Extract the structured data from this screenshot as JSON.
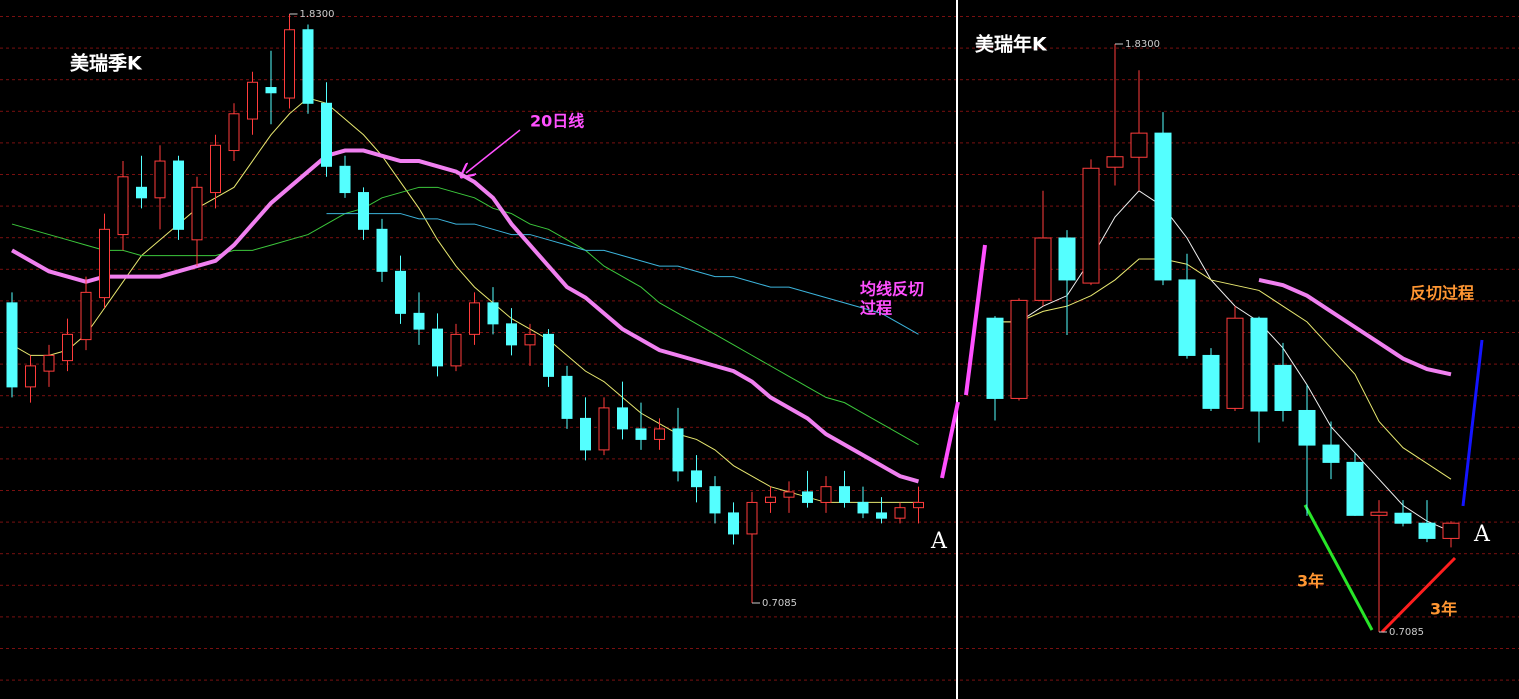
{
  "chart_data": [
    {
      "type": "candlestick",
      "title": "美瑞季K",
      "up_color": "#ff3c3c",
      "down_color": "#54ffff",
      "open": [
        1.28,
        1.12,
        1.15,
        1.17,
        1.21,
        1.29,
        1.41,
        1.5,
        1.48,
        1.55,
        1.4,
        1.49,
        1.57,
        1.63,
        1.69,
        1.67,
        1.8,
        1.66,
        1.54,
        1.49,
        1.42,
        1.34,
        1.26,
        1.23,
        1.16,
        1.22,
        1.28,
        1.24,
        1.2,
        1.22,
        1.14,
        1.06,
        1.0,
        1.08,
        1.04,
        1.02,
        1.04,
        0.96,
        0.93,
        0.88,
        0.84,
        0.9,
        0.91,
        0.92,
        0.9,
        0.93,
        0.9,
        0.88,
        0.87,
        0.89
      ],
      "high": [
        1.3,
        1.18,
        1.2,
        1.25,
        1.33,
        1.45,
        1.55,
        1.56,
        1.58,
        1.56,
        1.52,
        1.6,
        1.66,
        1.72,
        1.76,
        1.83,
        1.81,
        1.7,
        1.56,
        1.5,
        1.44,
        1.37,
        1.3,
        1.26,
        1.24,
        1.3,
        1.31,
        1.27,
        1.24,
        1.23,
        1.16,
        1.1,
        1.1,
        1.13,
        1.09,
        1.06,
        1.08,
        0.99,
        0.95,
        0.9,
        0.92,
        0.93,
        0.94,
        0.96,
        0.95,
        0.96,
        0.93,
        0.91,
        0.9,
        0.93
      ],
      "low": [
        1.1,
        1.09,
        1.12,
        1.15,
        1.19,
        1.27,
        1.38,
        1.46,
        1.42,
        1.4,
        1.35,
        1.46,
        1.55,
        1.6,
        1.62,
        1.65,
        1.64,
        1.52,
        1.48,
        1.4,
        1.32,
        1.24,
        1.2,
        1.14,
        1.15,
        1.2,
        1.22,
        1.18,
        1.16,
        1.12,
        1.04,
        0.98,
        0.99,
        1.02,
        1.0,
        1.0,
        0.94,
        0.9,
        0.86,
        0.82,
        0.7085,
        0.88,
        0.88,
        0.89,
        0.88,
        0.89,
        0.87,
        0.86,
        0.86,
        0.86
      ],
      "close": [
        1.12,
        1.16,
        1.18,
        1.22,
        1.3,
        1.42,
        1.52,
        1.48,
        1.55,
        1.42,
        1.5,
        1.58,
        1.64,
        1.7,
        1.68,
        1.8,
        1.66,
        1.54,
        1.49,
        1.42,
        1.34,
        1.26,
        1.23,
        1.16,
        1.22,
        1.28,
        1.24,
        1.2,
        1.22,
        1.14,
        1.06,
        1.0,
        1.08,
        1.04,
        1.02,
        1.04,
        0.96,
        0.93,
        0.88,
        0.84,
        0.9,
        0.91,
        0.92,
        0.9,
        0.93,
        0.9,
        0.88,
        0.87,
        0.89,
        0.9
      ],
      "high_label": "1.8300",
      "low_label": "0.7085",
      "series": [
        {
          "color": "#e8e870",
          "line_width": 1,
          "values": [
            1.2,
            1.18,
            1.18,
            1.19,
            1.22,
            1.27,
            1.32,
            1.37,
            1.4,
            1.43,
            1.46,
            1.48,
            1.5,
            1.55,
            1.6,
            1.64,
            1.67,
            1.66,
            1.63,
            1.6,
            1.56,
            1.51,
            1.46,
            1.4,
            1.35,
            1.31,
            1.28,
            1.25,
            1.23,
            1.21,
            1.18,
            1.15,
            1.13,
            1.1,
            1.07,
            1.05,
            1.03,
            1.02,
            1.0,
            0.97,
            0.95,
            0.93,
            0.92,
            0.91,
            0.9,
            0.9,
            0.9,
            0.9,
            0.9,
            0.9
          ]
        },
        {
          "color": "#3cc83c",
          "line_width": 1,
          "values": [
            1.43,
            1.42,
            1.41,
            1.4,
            1.39,
            1.38,
            1.38,
            1.37,
            1.37,
            1.37,
            1.37,
            1.37,
            1.38,
            1.38,
            1.39,
            1.4,
            1.41,
            1.43,
            1.45,
            1.46,
            1.48,
            1.49,
            1.5,
            1.5,
            1.49,
            1.48,
            1.46,
            1.45,
            1.43,
            1.42,
            1.4,
            1.38,
            1.35,
            1.33,
            1.31,
            1.28,
            1.26,
            1.24,
            1.22,
            1.2,
            1.18,
            1.16,
            1.14,
            1.12,
            1.1,
            1.09,
            1.07,
            1.05,
            1.03,
            1.01
          ]
        },
        {
          "color": "#3cb4dc",
          "line_width": 1,
          "values": [
            null,
            null,
            null,
            null,
            null,
            null,
            null,
            null,
            null,
            null,
            null,
            null,
            null,
            null,
            null,
            null,
            null,
            1.45,
            1.45,
            1.45,
            1.45,
            1.45,
            1.44,
            1.44,
            1.43,
            1.43,
            1.42,
            1.41,
            1.41,
            1.4,
            1.39,
            1.38,
            1.38,
            1.37,
            1.36,
            1.35,
            1.35,
            1.34,
            1.33,
            1.33,
            1.32,
            1.31,
            1.31,
            1.3,
            1.29,
            1.28,
            1.27,
            1.26,
            1.24,
            1.22
          ]
        },
        {
          "color": "#f080f0",
          "line_width": 4,
          "values": [
            1.38,
            1.36,
            1.34,
            1.33,
            1.32,
            1.33,
            1.33,
            1.33,
            1.33,
            1.34,
            1.35,
            1.36,
            1.39,
            1.43,
            1.47,
            1.5,
            1.53,
            1.56,
            1.57,
            1.57,
            1.56,
            1.55,
            1.55,
            1.54,
            1.53,
            1.51,
            1.48,
            1.43,
            1.39,
            1.35,
            1.31,
            1.29,
            1.26,
            1.23,
            1.21,
            1.19,
            1.18,
            1.17,
            1.16,
            1.15,
            1.13,
            1.1,
            1.08,
            1.06,
            1.03,
            1.01,
            0.99,
            0.97,
            0.95,
            0.94
          ]
        }
      ],
      "annotations": [
        {
          "text": "20日线",
          "color": "#ff50ff"
        },
        {
          "text": "均线反切",
          "color": "#ff50ff"
        },
        {
          "text": "过程",
          "color": "#ff50ff"
        },
        {
          "text": "A",
          "color": "#ffffff"
        }
      ]
    },
    {
      "type": "candlestick",
      "title": "美瑞年K",
      "up_color": "#ff3c3c",
      "down_color": "#54ffff",
      "open": [
        1.307,
        1.154,
        1.341,
        1.46,
        1.374,
        1.595,
        1.614,
        1.66,
        1.38,
        1.236,
        1.135,
        1.307,
        1.217,
        1.131,
        1.065,
        1.032,
        0.931,
        0.935,
        0.916,
        0.887
      ],
      "high": [
        1.311,
        1.345,
        1.55,
        1.475,
        1.61,
        1.83,
        1.78,
        1.7,
        1.43,
        1.25,
        1.33,
        1.31,
        1.26,
        1.18,
        1.11,
        1.05,
        0.96,
        0.96,
        0.96,
        0.92
      ],
      "low": [
        1.112,
        1.15,
        1.33,
        1.275,
        1.37,
        1.56,
        1.55,
        1.37,
        1.23,
        1.13,
        1.13,
        1.07,
        1.11,
        0.93,
        1.0,
        0.93,
        0.7085,
        0.91,
        0.88,
        0.87
      ],
      "close": [
        1.154,
        1.341,
        1.46,
        1.38,
        1.593,
        1.615,
        1.66,
        1.38,
        1.236,
        1.135,
        1.307,
        1.13,
        1.131,
        1.065,
        1.032,
        0.931,
        0.937,
        0.916,
        0.887,
        0.916
      ],
      "high_label": "1.8300",
      "low_label": "0.7085",
      "series": [
        {
          "color": "#f0f0f0",
          "line_width": 1,
          "values": [
            1.3,
            1.3,
            1.33,
            1.35,
            1.42,
            1.5,
            1.55,
            1.52,
            1.46,
            1.38,
            1.33,
            1.3,
            1.25,
            1.18,
            1.1,
            1.05,
            1.0,
            0.95,
            0.92,
            0.9
          ]
        },
        {
          "color": "#e8e870",
          "line_width": 1,
          "values": [
            1.3,
            1.3,
            1.32,
            1.33,
            1.35,
            1.38,
            1.42,
            1.42,
            1.41,
            1.38,
            1.37,
            1.36,
            1.33,
            1.3,
            1.25,
            1.2,
            1.11,
            1.06,
            1.03,
            1.0
          ]
        },
        {
          "color": "#f080f0",
          "line_width": 4,
          "values": [
            null,
            null,
            null,
            null,
            null,
            null,
            null,
            null,
            null,
            null,
            null,
            1.38,
            1.37,
            1.35,
            1.32,
            1.29,
            1.26,
            1.23,
            1.21,
            1.2
          ]
        }
      ],
      "annotations": [
        {
          "text": "反切过程",
          "color": "#ff9632"
        },
        {
          "text": "A",
          "color": "#ffffff"
        },
        {
          "text": "3年",
          "color": "#ff9632"
        },
        {
          "text": "3年",
          "color": "#ff9632"
        }
      ]
    }
  ]
}
